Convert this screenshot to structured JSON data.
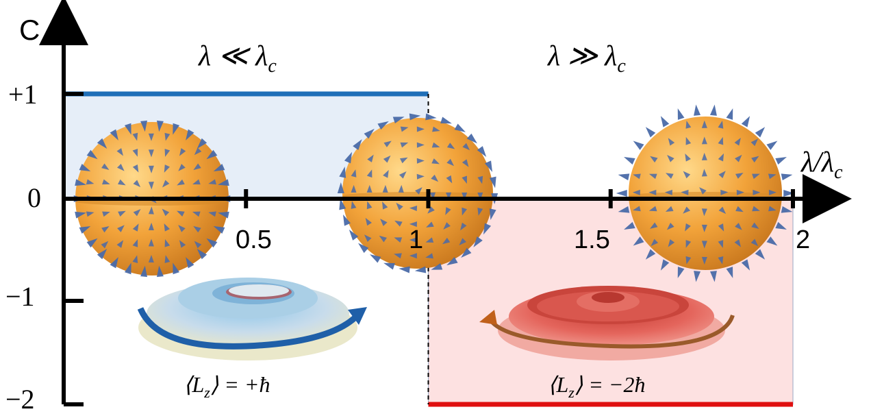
{
  "y_axis_label": "C",
  "x_axis_label_main": "λ/λ",
  "x_axis_label_sub": "c",
  "y_ticks": [
    "+1",
    "0",
    "−1",
    "−2"
  ],
  "x_ticks": [
    "0.5",
    "1",
    "1.5",
    "2"
  ],
  "region_left_label": {
    "main": "λ ≪ λ",
    "sub": "c"
  },
  "region_right_label": {
    "main": "λ ≫ λ",
    "sub": "c"
  },
  "left_angular_momentum": {
    "prefix": "⟨L",
    "sub": "z",
    "suffix": "⟩ = +ħ"
  },
  "right_angular_momentum": {
    "prefix": "⟨L",
    "sub": "z",
    "suffix": "⟩ = −2ħ"
  },
  "colors": {
    "positive_line": "#1f6fb8",
    "negative_line": "#e01010",
    "positive_fill": "#e6eef8",
    "negative_fill": "#fde1e1",
    "sphere": "#f2a33a",
    "arrow": "#4a6aa8",
    "torus_left": "#b8d8ee",
    "torus_right": "#e0524a"
  },
  "chart_data": {
    "type": "line",
    "xlabel": "λ/λc",
    "ylabel": "C",
    "xlim": [
      0,
      2
    ],
    "ylim": [
      -2,
      1
    ],
    "series": [
      {
        "x": [
          0,
          1
        ],
        "values": [
          1,
          1
        ]
      },
      {
        "x": [
          1,
          2
        ],
        "values": [
          -2,
          -2
        ]
      }
    ]
  }
}
